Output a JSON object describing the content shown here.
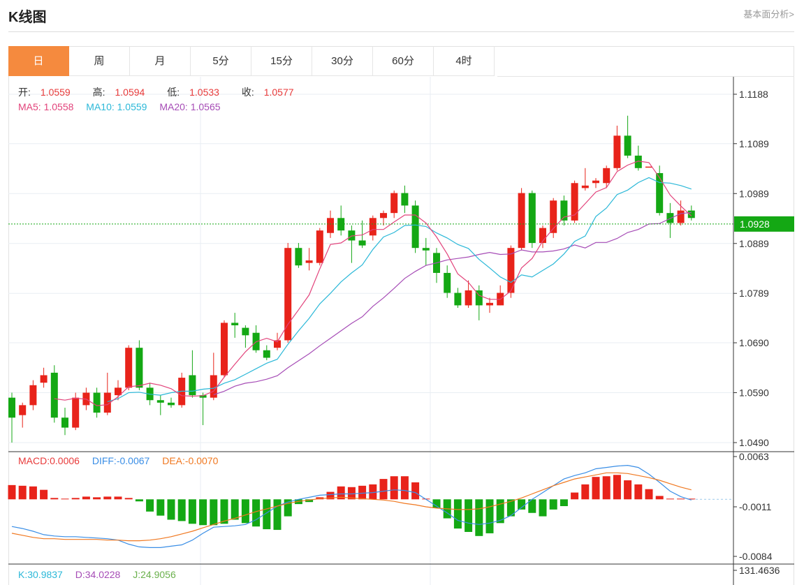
{
  "page": {
    "title": "K线图",
    "link": "基本面分析>"
  },
  "tabs": [
    {
      "label": "日",
      "active": true
    },
    {
      "label": "周"
    },
    {
      "label": "月"
    },
    {
      "label": "5分"
    },
    {
      "label": "15分"
    },
    {
      "label": "30分"
    },
    {
      "label": "60分"
    },
    {
      "label": "4时"
    }
  ],
  "legend": {
    "open_label": "开:",
    "open": "1.0559",
    "high_label": "高:",
    "high": "1.0594",
    "low_label": "低:",
    "low": "1.0533",
    "close_label": "收:",
    "close": "1.0577",
    "ma5": "MA5: 1.0558",
    "ma10": "MA10: 1.0559",
    "ma20": "MA20: 1.0565",
    "macd": "MACD:0.0006",
    "diff": "DIFF:-0.0067",
    "dea": "DEA:-0.0070",
    "k": "K:30.9837",
    "d": "D:34.0228",
    "j": "J:24.9056"
  },
  "colors": {
    "up": "#e8231a",
    "down": "#14a814",
    "ma5": "#e2437b",
    "ma10": "#2bb8d8",
    "ma20": "#a64cb6",
    "diff": "#3a8ee6",
    "dea": "#f07820",
    "last_price": "#14a814"
  },
  "chart_data": {
    "type": "candlestick",
    "price_axis": {
      "min": 1.049,
      "max": 1.1188,
      "ticks": [
        "1.1188",
        "1.1089",
        "1.0989",
        "1.0889",
        "1.0789",
        "1.0690",
        "1.0590",
        "1.0490"
      ]
    },
    "last_price": 1.0928,
    "last_price_label": "1.0928",
    "candles": [
      [
        1.058,
        1.054,
        1.059,
        1.049
      ],
      [
        1.0545,
        1.0565,
        1.057,
        1.052
      ],
      [
        1.0565,
        1.0605,
        1.0615,
        1.0555
      ],
      [
        1.061,
        1.0625,
        1.064,
        1.06
      ],
      [
        1.063,
        1.054,
        1.0645,
        1.053
      ],
      [
        1.054,
        1.052,
        1.056,
        1.0505
      ],
      [
        1.052,
        1.058,
        1.059,
        1.0515
      ],
      [
        1.0565,
        1.059,
        1.06,
        1.0555
      ],
      [
        1.059,
        1.055,
        1.06,
        1.054
      ],
      [
        1.055,
        1.059,
        1.063,
        1.0545
      ],
      [
        1.0585,
        1.06,
        1.0615,
        1.0575
      ],
      [
        1.06,
        1.068,
        1.0685,
        1.0595
      ],
      [
        1.068,
        1.06,
        1.0695,
        1.0595
      ],
      [
        1.06,
        1.0575,
        1.061,
        1.0565
      ],
      [
        1.0575,
        1.057,
        1.0585,
        1.0545
      ],
      [
        1.057,
        1.0565,
        1.058,
        1.056
      ],
      [
        1.0565,
        1.062,
        1.063,
        1.056
      ],
      [
        1.0625,
        1.0585,
        1.0675,
        1.058
      ],
      [
        1.0585,
        1.058,
        1.059,
        1.0525
      ],
      [
        1.058,
        1.0625,
        1.067,
        1.0575
      ],
      [
        1.0625,
        1.073,
        1.0735,
        1.062
      ],
      [
        1.073,
        1.0725,
        1.075,
        1.07
      ],
      [
        1.072,
        1.0705,
        1.0725,
        1.068
      ],
      [
        1.071,
        1.0675,
        1.0725,
        1.067
      ],
      [
        1.0675,
        1.066,
        1.0685,
        1.0655
      ],
      [
        1.068,
        1.0695,
        1.071,
        1.0675
      ],
      [
        1.0695,
        1.088,
        1.089,
        1.069
      ],
      [
        1.088,
        1.0845,
        1.089,
        1.084
      ],
      [
        1.085,
        1.0855,
        1.088,
        1.0835
      ],
      [
        1.085,
        1.0915,
        1.092,
        1.0845
      ],
      [
        1.091,
        1.094,
        1.0955,
        1.09
      ],
      [
        1.094,
        1.0915,
        1.0965,
        1.0905
      ],
      [
        1.0915,
        1.0895,
        1.0925,
        1.085
      ],
      [
        1.0895,
        1.0885,
        1.0935,
        1.088
      ],
      [
        1.0905,
        1.094,
        1.0945,
        1.0895
      ],
      [
        1.094,
        1.095,
        1.0955,
        1.0925
      ],
      [
        1.095,
        1.099,
        1.0995,
        1.094
      ],
      [
        1.099,
        1.0965,
        1.1005,
        1.095
      ],
      [
        1.0965,
        1.088,
        1.0975,
        1.087
      ],
      [
        1.088,
        1.0875,
        1.09,
        1.0845
      ],
      [
        1.087,
        1.083,
        1.088,
        1.081
      ],
      [
        1.083,
        1.079,
        1.0845,
        1.078
      ],
      [
        1.079,
        1.0765,
        1.08,
        1.076
      ],
      [
        1.0765,
        1.0795,
        1.0815,
        1.076
      ],
      [
        1.0795,
        1.0765,
        1.0805,
        1.0735
      ],
      [
        1.0765,
        1.077,
        1.078,
        1.075
      ],
      [
        1.0765,
        1.079,
        1.0805,
        1.0765
      ],
      [
        1.079,
        1.088,
        1.0885,
        1.078
      ],
      [
        1.088,
        1.099,
        1.1,
        1.0875
      ],
      [
        1.099,
        1.089,
        1.0995,
        1.088
      ],
      [
        1.089,
        1.092,
        1.0925,
        1.088
      ],
      [
        1.091,
        1.0975,
        1.098,
        1.09
      ],
      [
        1.0975,
        1.0935,
        1.0985,
        1.0925
      ],
      [
        1.0935,
        1.101,
        1.1015,
        1.093
      ],
      [
        1.1,
        1.1005,
        1.104,
        1.0995
      ],
      [
        1.101,
        1.1015,
        1.102,
        1.1
      ],
      [
        1.101,
        1.104,
        1.1045,
        1.1
      ],
      [
        1.104,
        1.1105,
        1.1125,
        1.1035
      ],
      [
        1.1105,
        1.1065,
        1.1145,
        1.106
      ],
      [
        1.1065,
        1.104,
        1.1085,
        1.1035
      ],
      [
        1.1043,
        1.1043,
        1.1043,
        1.1043
      ],
      [
        1.103,
        1.095,
        1.1045,
        1.0945
      ],
      [
        1.095,
        1.093,
        1.097,
        1.09
      ],
      [
        1.093,
        1.0955,
        1.0975,
        1.0925
      ],
      [
        1.0955,
        1.094,
        1.0965,
        1.0935
      ]
    ],
    "ma5": [
      null,
      null,
      null,
      null,
      1.0578,
      1.0575,
      1.0579,
      1.0577,
      1.0564,
      1.0566,
      1.0582,
      1.0602,
      1.0604,
      1.0609,
      1.0605,
      1.0598,
      1.0584,
      1.0583,
      1.0584,
      1.0593,
      1.0621,
      1.0647,
      1.0672,
      1.0692,
      1.0699,
      1.0692,
      1.0727,
      1.0756,
      1.0786,
      1.0838,
      1.0887,
      1.089,
      1.0904,
      1.0906,
      1.0917,
      1.0917,
      1.0932,
      1.0946,
      1.0946,
      1.093,
      1.0902,
      1.0868,
      1.0828,
      1.0811,
      1.0785,
      1.0777,
      1.0777,
      1.0794,
      1.084,
      1.0859,
      1.0894,
      1.0919,
      1.0942,
      1.0946,
      1.0969,
      1.0992,
      1.1001,
      1.1033,
      1.1046,
      1.1054,
      1.1051,
      1.1021,
      1.0986,
      1.0964,
      1.0944
    ],
    "ma10": [
      null,
      null,
      null,
      null,
      null,
      null,
      null,
      null,
      null,
      1.0572,
      1.0578,
      1.059,
      1.0591,
      1.0587,
      1.0585,
      1.059,
      1.0593,
      1.0593,
      1.0597,
      1.0599,
      1.0609,
      1.0616,
      1.0627,
      1.0638,
      1.0649,
      1.0657,
      1.0687,
      1.0714,
      1.0739,
      1.0768,
      1.0789,
      1.0812,
      1.083,
      1.0846,
      1.0877,
      1.0902,
      1.0911,
      1.0925,
      1.0926,
      1.0923,
      1.091,
      1.09,
      1.0887,
      1.0879,
      1.0857,
      1.084,
      1.0822,
      1.0811,
      1.0826,
      1.0822,
      1.0835,
      1.0848,
      1.0868,
      1.0893,
      1.0904,
      1.0943,
      1.096,
      1.0987,
      1.0996,
      1.1011,
      1.1021,
      1.1011,
      1.101,
      1.1005,
      1.0998
    ],
    "ma20": [
      null,
      null,
      null,
      null,
      null,
      null,
      null,
      null,
      null,
      null,
      null,
      null,
      null,
      null,
      null,
      null,
      null,
      null,
      null,
      1.0586,
      1.0593,
      1.0603,
      1.0609,
      1.0612,
      1.0617,
      1.0624,
      1.064,
      1.0654,
      1.0668,
      1.0684,
      1.0699,
      1.0714,
      1.0729,
      1.0742,
      1.0763,
      1.078,
      1.0799,
      1.0819,
      1.0833,
      1.0845,
      1.085,
      1.0856,
      1.0859,
      1.0862,
      1.0867,
      1.0871,
      1.0867,
      1.0868,
      1.0876,
      1.0872,
      1.0872,
      1.0874,
      1.0878,
      1.0886,
      1.088,
      1.0891,
      1.0891,
      1.0899,
      1.0911,
      1.0917,
      1.0928,
      1.0929,
      1.0939,
      1.0949,
      1.0951
    ],
    "macd_axis": {
      "max": 0.0063,
      "min": -0.0084,
      "ticks": [
        "0.0063",
        "-0.0011",
        "-0.0084"
      ]
    },
    "macd_hist": [
      0.0021,
      0.002,
      0.0019,
      0.0014,
      0.0002,
      0.0001,
      0.0002,
      0.0004,
      0.0003,
      0.0004,
      0.0004,
      0.0002,
      -0.0003,
      -0.0018,
      -0.0024,
      -0.003,
      -0.0032,
      -0.0036,
      -0.0038,
      -0.0038,
      -0.0036,
      -0.003,
      -0.0035,
      -0.004,
      -0.0044,
      -0.0045,
      -0.0025,
      -0.0007,
      -0.0004,
      0.0003,
      0.0011,
      0.0019,
      0.0018,
      0.002,
      0.0022,
      0.003,
      0.0034,
      0.0034,
      0.0025,
      0.0001,
      -0.0013,
      -0.0028,
      -0.0043,
      -0.0048,
      -0.0054,
      -0.005,
      -0.0035,
      -0.0025,
      -0.0015,
      -0.002,
      -0.0025,
      -0.0015,
      -0.001,
      0.001,
      0.0022,
      0.0033,
      0.0034,
      0.0036,
      0.0028,
      0.0022,
      0.0015,
      0.0005,
      0.0001,
      0.0001,
      0.0001
    ],
    "diff": [
      -0.004,
      -0.0043,
      -0.0047,
      -0.0052,
      -0.0054,
      -0.0055,
      -0.0055,
      -0.0056,
      -0.0057,
      -0.0058,
      -0.006,
      -0.0066,
      -0.007,
      -0.0071,
      -0.0071,
      -0.0069,
      -0.0067,
      -0.006,
      -0.005,
      -0.0041,
      -0.004,
      -0.0039,
      -0.0037,
      -0.003,
      -0.002,
      -0.001,
      -0.0004,
      0.0,
      0.0003,
      0.0006,
      0.0007,
      0.0008,
      0.0008,
      0.0009,
      0.001,
      0.0012,
      0.0014,
      0.0013,
      0.001,
      0.0,
      -0.001,
      -0.002,
      -0.0031,
      -0.0035,
      -0.0037,
      -0.0035,
      -0.0031,
      -0.0024,
      -0.0012,
      0.0,
      0.001,
      0.002,
      0.003,
      0.0035,
      0.0039,
      0.0045,
      0.0047,
      0.0049,
      0.005,
      0.0047,
      0.0037,
      0.0025,
      0.0012,
      0.0004,
      -0.0001
    ],
    "dea": [
      -0.005,
      -0.0053,
      -0.0056,
      -0.0058,
      -0.0058,
      -0.0059,
      -0.0059,
      -0.0059,
      -0.0059,
      -0.006,
      -0.006,
      -0.0061,
      -0.0061,
      -0.006,
      -0.0058,
      -0.0055,
      -0.0051,
      -0.0047,
      -0.0042,
      -0.0037,
      -0.0032,
      -0.0028,
      -0.0023,
      -0.0018,
      -0.0014,
      -0.001,
      -0.0006,
      -0.0003,
      -0.0001,
      0.0001,
      0.0002,
      0.0003,
      0.0002,
      0.0001,
      0.0,
      -0.0001,
      -0.0003,
      -0.0006,
      -0.0008,
      -0.0011,
      -0.0013,
      -0.0014,
      -0.0015,
      -0.0015,
      -0.0014,
      -0.0011,
      -0.0007,
      -0.0003,
      0.0002,
      0.0008,
      0.0014,
      0.002,
      0.0025,
      0.003,
      0.0033,
      0.0036,
      0.0039,
      0.0039,
      0.0038,
      0.0035,
      0.0032,
      0.0028,
      0.0023,
      0.0018,
      0.0014
    ],
    "kdj_axis_label": "131.4636"
  }
}
